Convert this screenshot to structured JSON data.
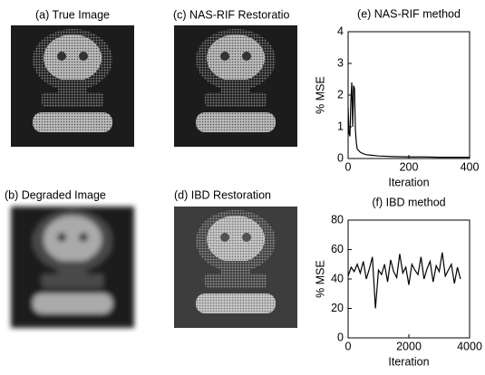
{
  "panels": [
    {
      "label": "(a) True Image"
    },
    {
      "label": "(c) NAS-RIF Restoratio"
    },
    {
      "label": "(b) Degraded Image"
    },
    {
      "label": "(d) IBD Restoration"
    }
  ],
  "chart_data": [
    {
      "type": "line",
      "title": "(e) NAS-RIF method",
      "xlabel": "Iteration",
      "ylabel": "% MSE",
      "x": [
        0,
        3,
        6,
        9,
        12,
        15,
        18,
        21,
        24,
        27,
        30,
        35,
        40,
        50,
        60,
        80,
        100,
        150,
        200,
        250,
        300,
        350,
        400
      ],
      "values": [
        1.6,
        0.8,
        0.7,
        1.8,
        2.4,
        1.0,
        2.3,
        2.2,
        0.9,
        0.5,
        0.3,
        0.25,
        0.2,
        0.15,
        0.12,
        0.1,
        0.08,
        0.06,
        0.05,
        0.05,
        0.04,
        0.04,
        0.04
      ],
      "color": "#000000",
      "xlim": [
        0,
        400
      ],
      "ylim": [
        0,
        4
      ],
      "xticks": [
        0,
        200,
        400
      ],
      "yticks": [
        0,
        1,
        2,
        3,
        4
      ]
    },
    {
      "type": "line",
      "title": "(f) IBD method",
      "xlabel": "Iteration",
      "ylabel": "% MSE",
      "x": [
        0,
        100,
        200,
        300,
        400,
        500,
        600,
        700,
        800,
        900,
        1000,
        1100,
        1200,
        1300,
        1400,
        1500,
        1600,
        1700,
        1800,
        1900,
        2000,
        2100,
        2200,
        2300,
        2400,
        2500,
        2600,
        2700,
        2800,
        2900,
        3000,
        3100,
        3200,
        3300,
        3400,
        3500,
        3600,
        3700
      ],
      "values": [
        42,
        48,
        45,
        50,
        44,
        52,
        40,
        47,
        55,
        20,
        46,
        43,
        50,
        38,
        53,
        45,
        41,
        57,
        44,
        48,
        36,
        50,
        46,
        43,
        55,
        40,
        47,
        52,
        38,
        49,
        45,
        58,
        42,
        46,
        50,
        37,
        48,
        40
      ],
      "color": "#000000",
      "xlim": [
        0,
        4000
      ],
      "ylim": [
        0,
        80
      ],
      "xticks": [
        0,
        2000,
        4000
      ],
      "yticks": [
        0,
        20,
        40,
        60,
        80
      ]
    }
  ]
}
